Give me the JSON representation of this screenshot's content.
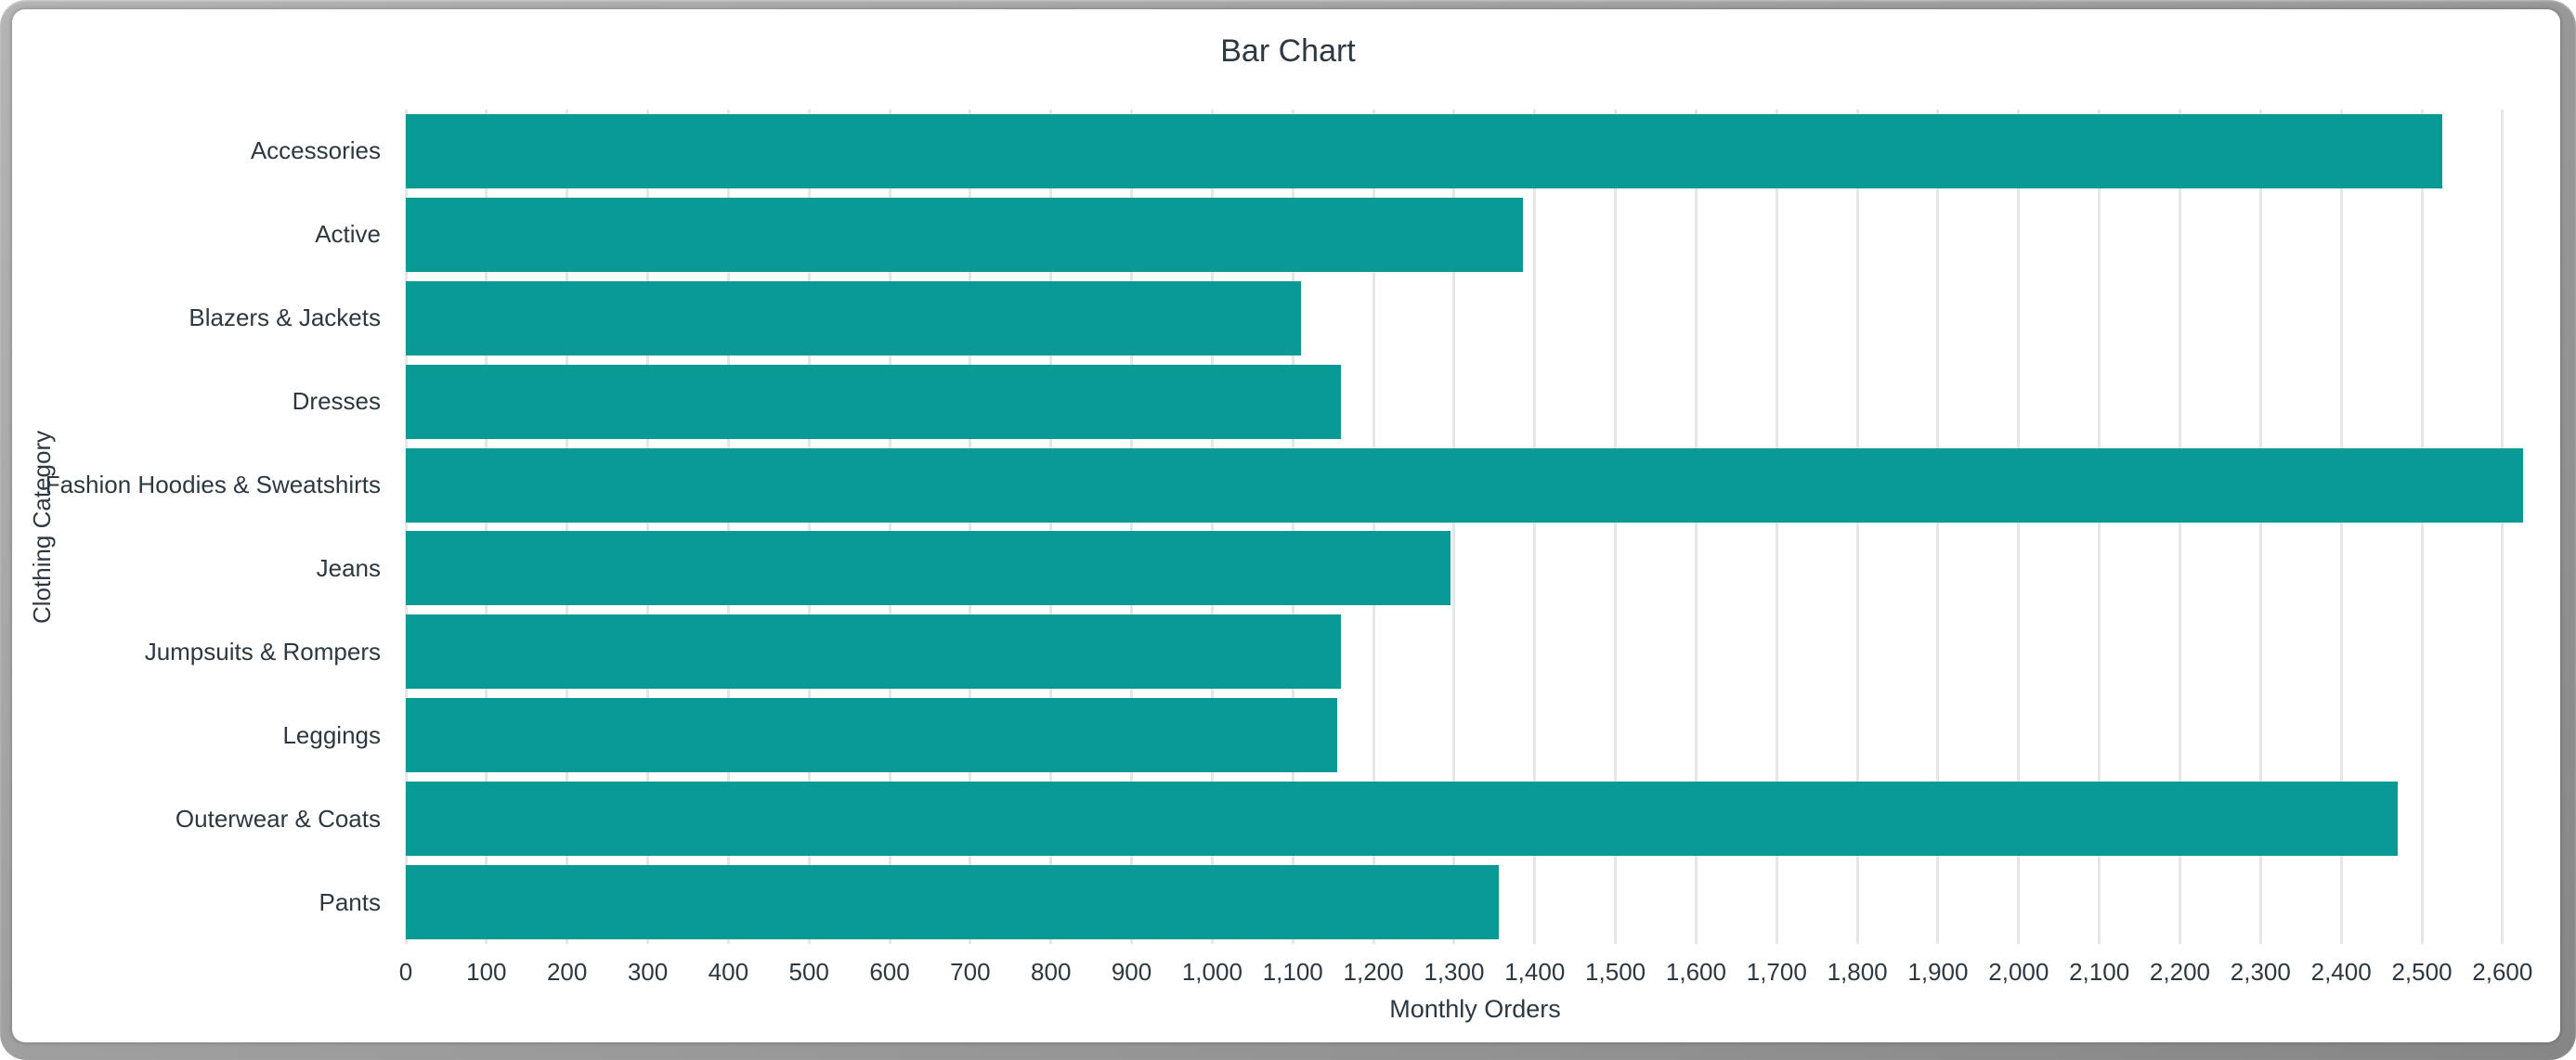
{
  "window": {
    "frame_color": "#9a9a9a",
    "background_color": "#ffffff"
  },
  "chart_data": {
    "type": "bar",
    "orientation": "horizontal",
    "title": "Bar Chart",
    "xlabel": "Monthly Orders",
    "ylabel": "Clothing Category",
    "categories": [
      "Accessories",
      "Active",
      "Blazers & Jackets",
      "Dresses",
      "Fashion Hoodies & Sweatshirts",
      "Jeans",
      "Jumpsuits & Rompers",
      "Leggings",
      "Outerwear & Coats",
      "Pants"
    ],
    "values": [
      2525,
      1385,
      1110,
      1160,
      2625,
      1295,
      1160,
      1155,
      2470,
      1355
    ],
    "xlim": [
      0,
      2652
    ],
    "xticks": {
      "min": 0,
      "max": 2600,
      "step": 100
    },
    "xtick_label_format": "thousands-comma",
    "legend": "none",
    "grid": "vertical-only",
    "bar_color": "#099a96",
    "grid_color": "#e6e6e6",
    "text_color": "#2d3840"
  }
}
